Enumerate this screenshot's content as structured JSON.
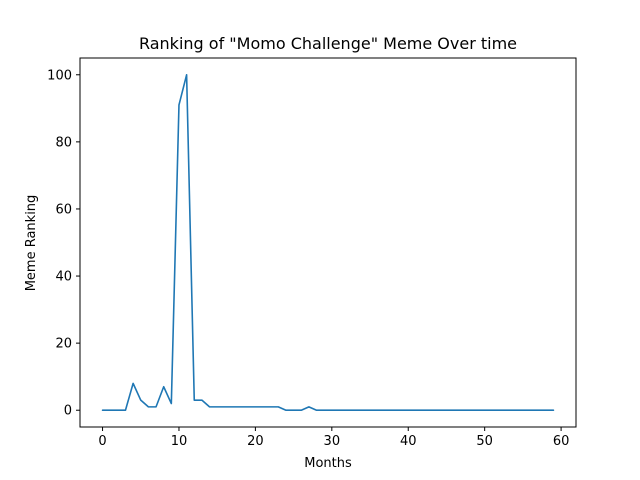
{
  "chart_data": {
    "type": "line",
    "title": "Ranking of \"Momo Challenge\" Meme Over time",
    "xlabel": "Months",
    "ylabel": "Meme Ranking",
    "xlim": [
      -2.95,
      61.95
    ],
    "ylim": [
      -5,
      105
    ],
    "xticks": [
      0,
      10,
      20,
      30,
      40,
      50,
      60
    ],
    "yticks": [
      0,
      20,
      40,
      60,
      80,
      100
    ],
    "grid": false,
    "series": [
      {
        "color": "#1f77b4",
        "x": [
          0,
          1,
          2,
          3,
          4,
          5,
          6,
          7,
          8,
          9,
          10,
          11,
          12,
          13,
          14,
          15,
          16,
          17,
          18,
          19,
          20,
          21,
          22,
          23,
          24,
          25,
          26,
          27,
          28,
          29,
          30,
          31,
          32,
          33,
          34,
          35,
          36,
          37,
          38,
          39,
          40,
          41,
          42,
          43,
          44,
          45,
          46,
          47,
          48,
          49,
          50,
          51,
          52,
          53,
          54,
          55,
          56,
          57,
          58,
          59
        ],
        "values": [
          0,
          0,
          0,
          0,
          8,
          3,
          1,
          1,
          7,
          2,
          91,
          100,
          3,
          3,
          1,
          1,
          1,
          1,
          1,
          1,
          1,
          1,
          1,
          1,
          0,
          0,
          0,
          1,
          0,
          0,
          0,
          0,
          0,
          0,
          0,
          0,
          0,
          0,
          0,
          0,
          0,
          0,
          0,
          0,
          0,
          0,
          0,
          0,
          0,
          0,
          0,
          0,
          0,
          0,
          0,
          0,
          0,
          0,
          0,
          0
        ]
      }
    ]
  }
}
